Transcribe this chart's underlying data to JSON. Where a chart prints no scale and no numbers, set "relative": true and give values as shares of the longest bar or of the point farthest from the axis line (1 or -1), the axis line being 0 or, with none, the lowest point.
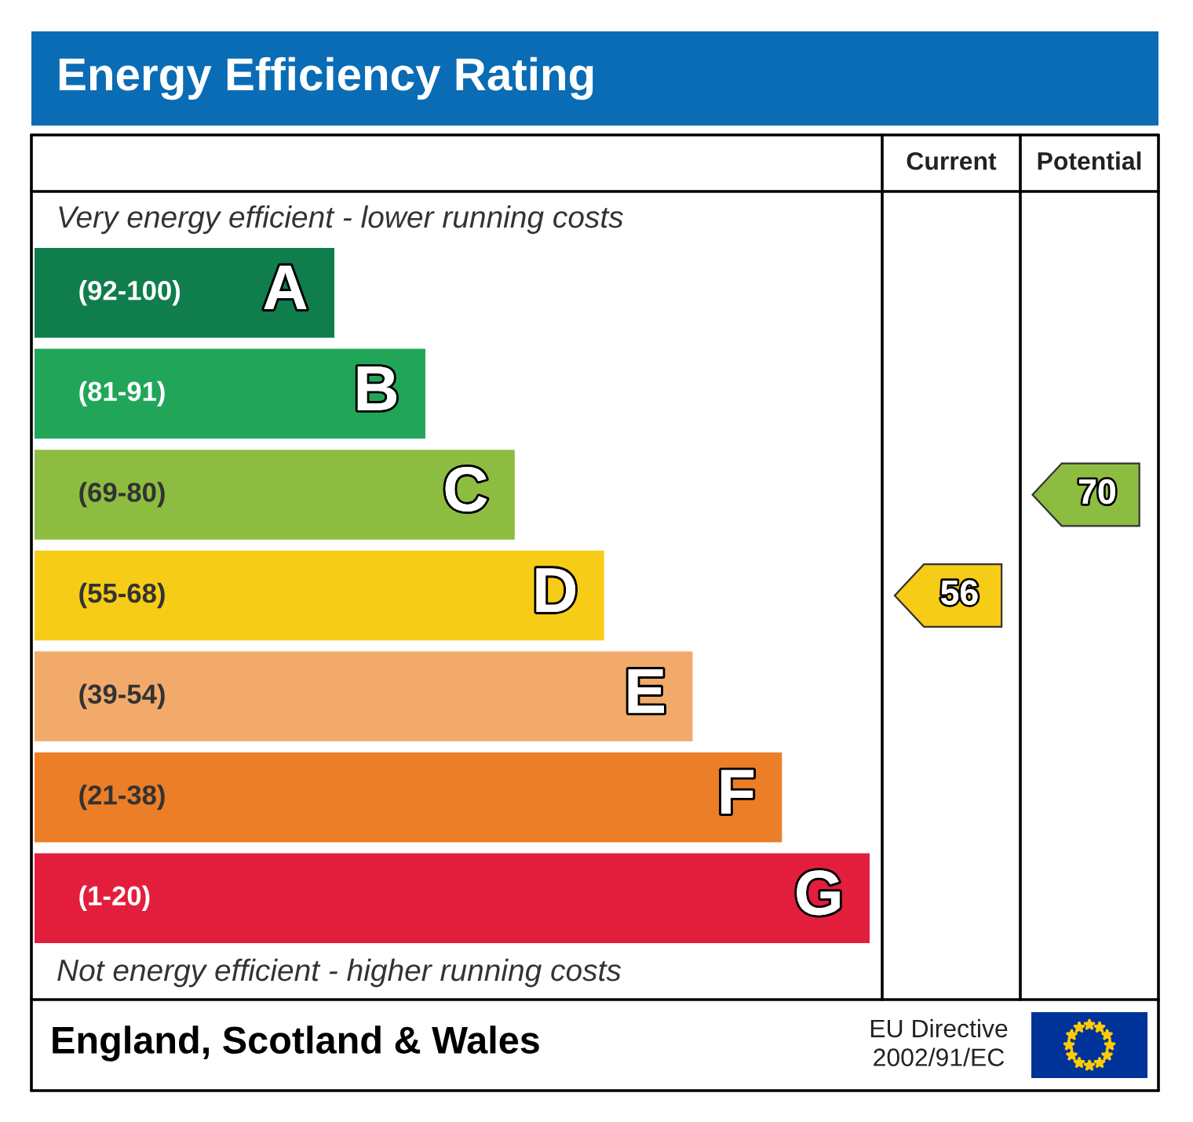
{
  "chart_data": {
    "type": "bar",
    "orientation": "horizontal",
    "relative": true,
    "title": "Energy Efficiency Rating",
    "categories": [
      "A",
      "B",
      "C",
      "D",
      "E",
      "F",
      "G"
    ],
    "values": [
      0.359,
      0.468,
      0.575,
      0.682,
      0.788,
      0.895,
      1.0
    ],
    "colors": [
      "#0f7d4c",
      "#21a659",
      "#8dbd40",
      "#f6cc16",
      "#f2aa6b",
      "#ec7e27",
      "#e31e3c"
    ],
    "annotations": [
      "Very energy efficient - lower running costs",
      "Not energy efficient - higher running costs",
      "Current",
      "Potential",
      "England, Scotland & Wales",
      "EU Directive\n2002/91/EC",
      "(92-100)",
      "(81-91)",
      "(69-80)",
      "(55-68)",
      "(39-54)",
      "(21-38)",
      "(1-20)",
      "56",
      "70"
    ]
  }
}
